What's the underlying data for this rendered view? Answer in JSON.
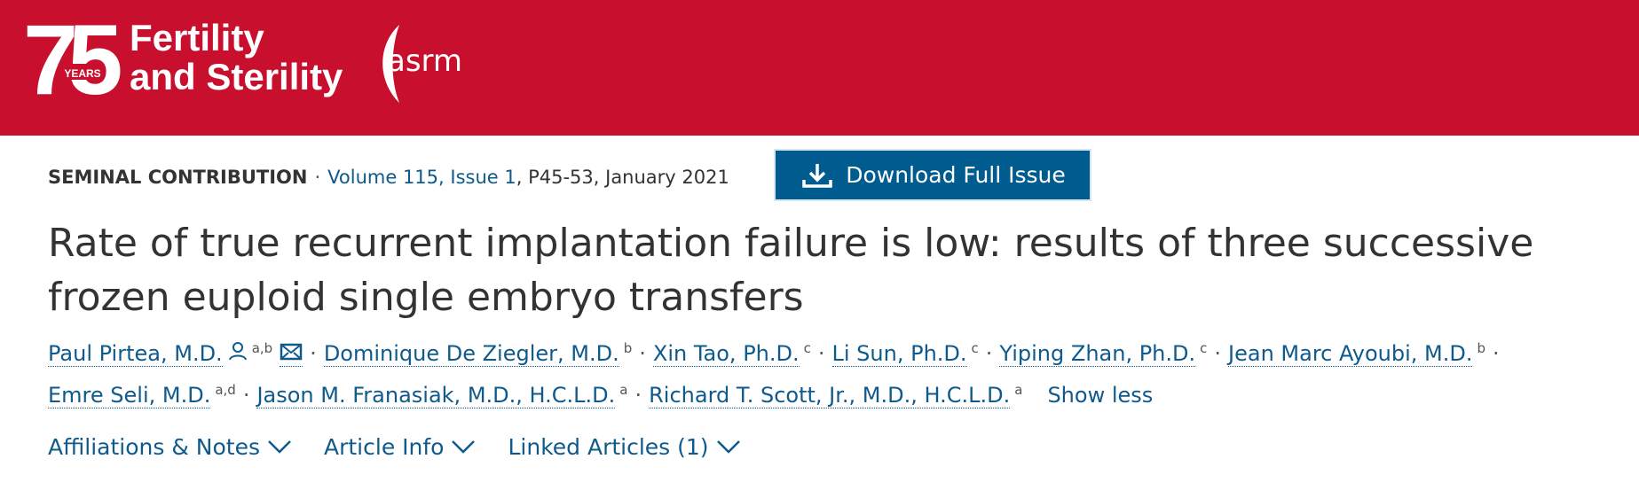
{
  "header": {
    "logo_number": "75",
    "logo_years": "YEARS",
    "journal_line1": "Fertility",
    "journal_line2": "and Sterility",
    "society": "asrm"
  },
  "meta": {
    "category": "SEMINAL CONTRIBUTION",
    "separator": "·",
    "volume": "Volume 115, Issue 1",
    "pages": ", P45-53, January 2021",
    "download": "Download Full Issue"
  },
  "title": "Rate of true recurrent implantation failure is low: results of three successive frozen euploid single embryo transfers",
  "authors": [
    {
      "name": "Paul Pirtea, M.D.",
      "sup": "a,b"
    },
    {
      "name": "Dominique De Ziegler, M.D.",
      "sup": "b"
    },
    {
      "name": "Xin Tao, Ph.D.",
      "sup": "c"
    },
    {
      "name": "Li Sun, Ph.D.",
      "sup": "c"
    },
    {
      "name": "Yiping Zhan, Ph.D.",
      "sup": "c"
    },
    {
      "name": "Jean Marc Ayoubi, M.D.",
      "sup": "b"
    },
    {
      "name": "Emre Seli, M.D.",
      "sup": "a,d"
    },
    {
      "name": "Jason M. Franasiak, M.D., H.C.L.D.",
      "sup": "a"
    },
    {
      "name": "Richard T. Scott, Jr., M.D., H.C.L.D.",
      "sup": "a"
    }
  ],
  "show_less": "Show less",
  "tabs": [
    "Affiliations & Notes",
    "Article Info",
    "Linked Articles (1)"
  ]
}
